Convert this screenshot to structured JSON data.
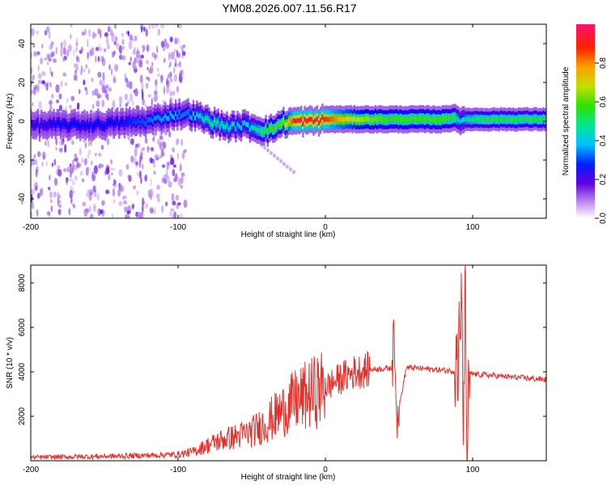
{
  "title": "YM08.2026.007.11.56.R17",
  "colors": {
    "snr_line": "#e8302a",
    "axis": "#000000",
    "colormap": [
      "#d8c0f0",
      "#a060e8",
      "#6000e0",
      "#0000ff",
      "#00c8ff",
      "#00e080",
      "#40e000",
      "#c8e000",
      "#ffb000",
      "#ff2000",
      "#ff1060"
    ]
  },
  "chart_data": [
    {
      "type": "heatmap",
      "name": "spectrogram",
      "xlabel": "Height of straight line (km)",
      "ylabel": "Frequency (Hz)",
      "xlim": [
        -200,
        150
      ],
      "ylim": [
        -50,
        50
      ],
      "xticks": [
        -200,
        -100,
        0,
        100
      ],
      "yticks": [
        -40,
        -20,
        0,
        20,
        40
      ],
      "colorbar": {
        "label": "Normalized spectral amplitude",
        "range": [
          0,
          1
        ],
        "ticks": [
          "0.0",
          "0.2",
          "0.4",
          "0.6",
          "0.8"
        ]
      },
      "ridge": {
        "x": [
          -200,
          -180,
          -160,
          -140,
          -120,
          -105,
          -95,
          -85,
          -75,
          -65,
          -55,
          -45,
          -38,
          -30,
          -20,
          -10,
          0,
          20,
          40,
          60,
          80,
          88,
          92,
          96,
          110,
          130,
          150
        ],
        "freq": [
          -2,
          -2,
          -2,
          -1,
          0,
          3,
          4,
          2,
          -1,
          -3,
          -2,
          -4,
          -5,
          -1,
          0,
          0,
          1,
          1,
          1,
          1,
          1,
          2,
          0,
          1,
          1,
          1,
          1
        ],
        "amp": [
          0.25,
          0.3,
          0.3,
          0.3,
          0.35,
          0.4,
          0.35,
          0.45,
          0.5,
          0.45,
          0.4,
          0.5,
          0.6,
          0.6,
          0.95,
          0.95,
          0.9,
          0.7,
          0.6,
          0.6,
          0.6,
          0.55,
          0.4,
          0.5,
          0.55,
          0.55,
          0.55
        ]
      }
    },
    {
      "type": "line",
      "name": "snr",
      "xlabel": "Height of straight line (km)",
      "ylabel": "SNR (10 * v/v)",
      "xlim": [
        -200,
        150
      ],
      "ylim": [
        0,
        8800
      ],
      "xticks": [
        -200,
        -100,
        0,
        100
      ],
      "yticks": [
        2000,
        4000,
        6000,
        8000
      ],
      "series": [
        {
          "name": "SNR",
          "x": [
            -200,
            -180,
            -160,
            -140,
            -120,
            -100,
            -90,
            -80,
            -70,
            -60,
            -50,
            -40,
            -30,
            -20,
            -10,
            0,
            10,
            20,
            30,
            40,
            45,
            47,
            49,
            55,
            65,
            75,
            85,
            90,
            92,
            94,
            95,
            96,
            98,
            100,
            110,
            120,
            130,
            140,
            150
          ],
          "y": [
            150,
            170,
            190,
            210,
            240,
            280,
            400,
            700,
            950,
            1100,
            1300,
            1700,
            2200,
            2700,
            3000,
            3300,
            3700,
            4000,
            4100,
            4150,
            4150,
            5500,
            2000,
            4200,
            4150,
            4100,
            4050,
            4000,
            7500,
            1400,
            8800,
            600,
            3900,
            3900,
            3850,
            3800,
            3750,
            3700,
            3650
          ]
        }
      ]
    }
  ]
}
